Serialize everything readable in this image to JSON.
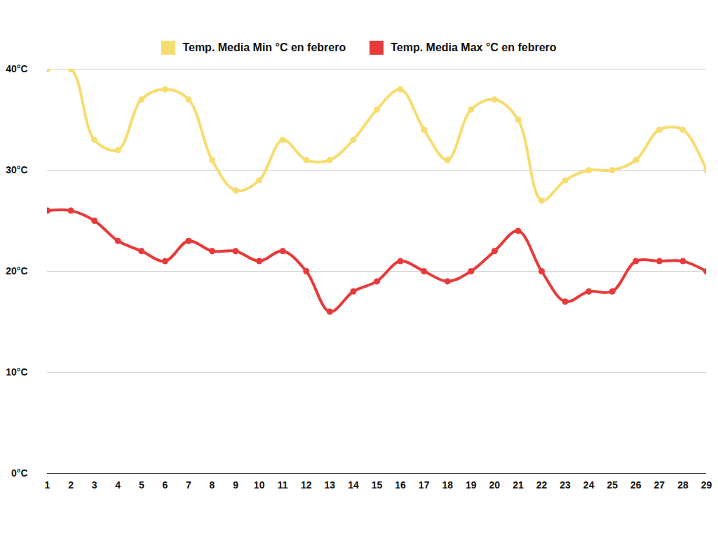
{
  "chart_data": {
    "type": "line",
    "x": [
      1,
      2,
      3,
      4,
      5,
      6,
      7,
      8,
      9,
      10,
      11,
      12,
      13,
      14,
      15,
      16,
      17,
      18,
      19,
      20,
      21,
      22,
      23,
      24,
      25,
      26,
      27,
      28,
      29
    ],
    "xlim": [
      1,
      29
    ],
    "xticks": [
      1,
      2,
      3,
      4,
      5,
      6,
      7,
      8,
      9,
      10,
      11,
      12,
      13,
      14,
      15,
      16,
      17,
      18,
      19,
      20,
      21,
      22,
      23,
      24,
      25,
      26,
      27,
      28,
      29
    ],
    "ylim": [
      0,
      40
    ],
    "yticks": [
      {
        "value": 0,
        "label": "0°C"
      },
      {
        "value": 10,
        "label": "10°C"
      },
      {
        "value": 20,
        "label": "20°C"
      },
      {
        "value": 30,
        "label": "30°C"
      },
      {
        "value": 40,
        "label": "40°C"
      }
    ],
    "grid": true,
    "legend": "top",
    "series": [
      {
        "name": "Temp. Media Min °C en febrero",
        "color": "#f7dc6f",
        "marker": "circle",
        "values": [
          40,
          40,
          33,
          32,
          37,
          38,
          37,
          31,
          28,
          29,
          33,
          31,
          31,
          33,
          36,
          38,
          34,
          31,
          36,
          37,
          35,
          27,
          29,
          30,
          30,
          31,
          34,
          34,
          30
        ]
      },
      {
        "name": "Temp. Media Max °C en febrero",
        "color": "#e83a3a",
        "marker": "circle",
        "values": [
          26,
          26,
          25,
          23,
          22,
          21,
          23,
          22,
          22,
          21,
          22,
          20,
          16,
          18,
          19,
          21,
          20,
          19,
          20,
          22,
          24,
          20,
          17,
          18,
          18,
          21,
          21,
          21,
          20
        ]
      }
    ]
  }
}
